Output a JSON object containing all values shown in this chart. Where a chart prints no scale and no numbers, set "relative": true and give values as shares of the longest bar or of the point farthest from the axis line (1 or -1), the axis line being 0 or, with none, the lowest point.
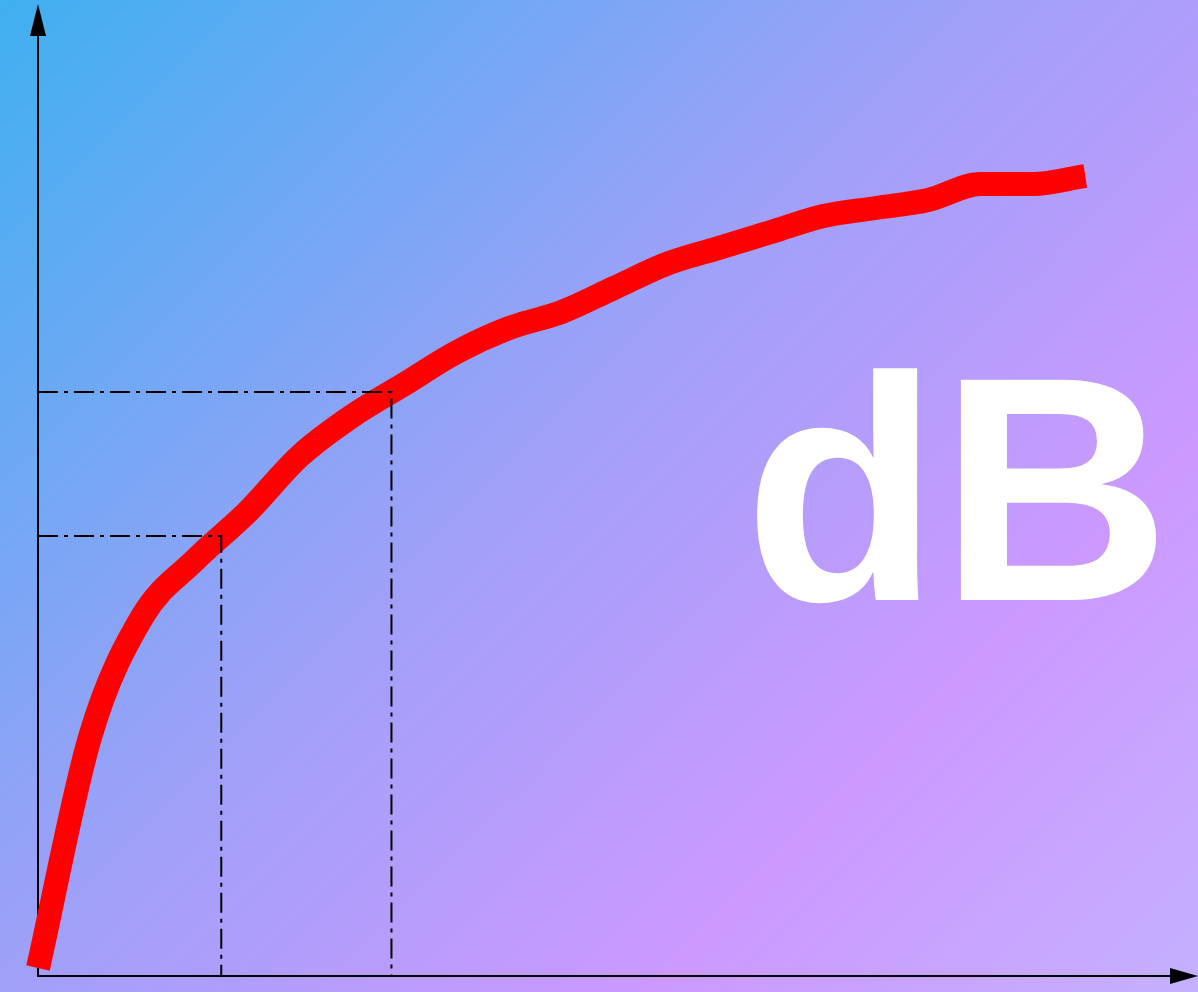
{
  "chart_data": {
    "type": "line",
    "relative": true,
    "categories": [
      null,
      null,
      null,
      null,
      null,
      null,
      null,
      null,
      null,
      null,
      null,
      null,
      null,
      null,
      null,
      null,
      null,
      null,
      null,
      null,
      null,
      null,
      null
    ],
    "series": [
      {
        "color": "#ff0000",
        "values": [
          0.01,
          0.3,
          0.45,
          0.52,
          0.58,
          0.65,
          0.7,
          0.74,
          0.78,
          0.81,
          0.83,
          0.86,
          0.89,
          0.91,
          0.93,
          0.95,
          0.96,
          0.97,
          0.99,
          0.99,
          1,
          null,
          null
        ]
      }
    ],
    "ref_lines": [
      {
        "axis": "y",
        "value": 0.73,
        "line_style": "dashdot"
      },
      {
        "axis": "y",
        "value": 0.55,
        "line_style": "dashdot"
      }
    ],
    "annotations": [
      "dB"
    ],
    "grid": false,
    "legend": false,
    "marker": "none",
    "line_style": "solid"
  }
}
